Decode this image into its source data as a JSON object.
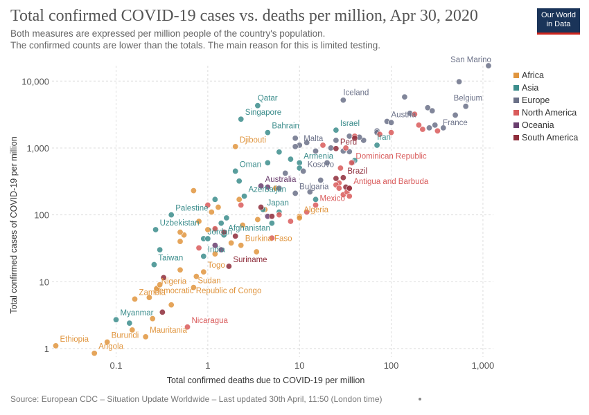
{
  "title": "Total confirmed COVID-19 cases vs. deaths per million, Apr 30, 2020",
  "subtitle_lines": [
    "Both measures are expressed per million people of the country's population.",
    "The confirmed counts are lower than the totals. The main reason for this is limited testing."
  ],
  "logo": {
    "line1": "Our World",
    "line2": "in Data",
    "bg": "#1a3459",
    "accent": "#ce261e"
  },
  "source": "Source: European CDC – Situation Update Worldwide – Last updated 30th April, 11:50 (London time)",
  "chart_data": {
    "type": "scatter",
    "x_scale": "log",
    "y_scale": "log",
    "xlim": [
      0.02,
      1300
    ],
    "ylim": [
      0.75,
      17000
    ],
    "xlabel": "Total confirmed deaths due to COVID-19 per million",
    "ylabel": "Total confirmed cases of COVID-19 per million",
    "x_ticks": [
      {
        "v": 0.1,
        "label": "0.1"
      },
      {
        "v": 1,
        "label": "1"
      },
      {
        "v": 10,
        "label": "10"
      },
      {
        "v": 100,
        "label": "100"
      },
      {
        "v": 1000,
        "label": "1,000"
      }
    ],
    "y_ticks": [
      {
        "v": 1,
        "label": "1"
      },
      {
        "v": 10,
        "label": "10"
      },
      {
        "v": 100,
        "label": "100"
      },
      {
        "v": 1000,
        "label": "1,000"
      },
      {
        "v": 10000,
        "label": "10,000"
      }
    ],
    "grid": true,
    "legend_position": "right",
    "series": [
      {
        "name": "Africa",
        "color": "#e0953e",
        "points": [
          {
            "x": 0.022,
            "y": 1.1,
            "label": "Ethiopia"
          },
          {
            "x": 0.058,
            "y": 0.85,
            "label": "Angola"
          },
          {
            "x": 0.08,
            "y": 1.25,
            "label": "Burundi"
          },
          {
            "x": 0.21,
            "y": 1.5,
            "label": "Mauritania"
          },
          {
            "x": 0.16,
            "y": 5.5,
            "label": "Zambia"
          },
          {
            "x": 0.28,
            "y": 8,
            "label": "Nigeria"
          },
          {
            "x": 0.7,
            "y": 8.2,
            "label": "Sudan"
          },
          {
            "x": 0.23,
            "y": 5.8,
            "label": "Democratic Republic of Congo"
          },
          {
            "x": 0.9,
            "y": 14,
            "label": "Togo"
          },
          {
            "x": 2.3,
            "y": 35,
            "label": "Burkina Faso"
          },
          {
            "x": 10,
            "y": 95,
            "label": "Algeria"
          },
          {
            "x": 2,
            "y": 1050,
            "label": "Djibouti"
          },
          {
            "x": 0.15,
            "y": 1.9
          },
          {
            "x": 0.25,
            "y": 2.8
          },
          {
            "x": 0.4,
            "y": 4.5
          },
          {
            "x": 0.5,
            "y": 15
          },
          {
            "x": 0.55,
            "y": 50
          },
          {
            "x": 0.5,
            "y": 55
          },
          {
            "x": 0.5,
            "y": 40
          },
          {
            "x": 0.7,
            "y": 230
          },
          {
            "x": 0.8,
            "y": 80
          },
          {
            "x": 1.1,
            "y": 110
          },
          {
            "x": 1.3,
            "y": 130
          },
          {
            "x": 1.8,
            "y": 38
          },
          {
            "x": 2.4,
            "y": 70
          },
          {
            "x": 3.4,
            "y": 28
          },
          {
            "x": 3.5,
            "y": 85
          },
          {
            "x": 4.2,
            "y": 120
          },
          {
            "x": 5.5,
            "y": 250
          },
          {
            "x": 10,
            "y": 90
          },
          {
            "x": 1.2,
            "y": 26
          },
          {
            "x": 0.75,
            "y": 12
          },
          {
            "x": 1.0,
            "y": 60
          },
          {
            "x": 2.2,
            "y": 170
          },
          {
            "x": 0.3,
            "y": 9
          }
        ]
      },
      {
        "name": "Asia",
        "color": "#3c8d8c",
        "points": [
          {
            "x": 3.5,
            "y": 4300,
            "label": "Qatar"
          },
          {
            "x": 2.3,
            "y": 2700,
            "label": "Singapore"
          },
          {
            "x": 4.5,
            "y": 1700,
            "label": "Bahrain"
          },
          {
            "x": 25,
            "y": 1850,
            "label": "Israel"
          },
          {
            "x": 70,
            "y": 1100,
            "label": "Iran"
          },
          {
            "x": 2,
            "y": 450,
            "label": "Oman"
          },
          {
            "x": 10,
            "y": 600,
            "label": "Armenia"
          },
          {
            "x": 2.5,
            "y": 190,
            "label": "Azerbaijan"
          },
          {
            "x": 4,
            "y": 120,
            "label": "Japan"
          },
          {
            "x": 0.4,
            "y": 100,
            "label": "Palestine"
          },
          {
            "x": 0.27,
            "y": 60,
            "label": "Uzbekistan"
          },
          {
            "x": 1.5,
            "y": 50,
            "label": "Afghanistan"
          },
          {
            "x": 0.9,
            "y": 44,
            "label": "Jordan"
          },
          {
            "x": 0.9,
            "y": 24,
            "label": "India"
          },
          {
            "x": 0.26,
            "y": 18,
            "label": "Taiwan"
          },
          {
            "x": 0.1,
            "y": 2.7,
            "label": "Myanmar"
          },
          {
            "x": 0.14,
            "y": 2.4
          },
          {
            "x": 0.3,
            "y": 30
          },
          {
            "x": 1.0,
            "y": 44
          },
          {
            "x": 1.2,
            "y": 170
          },
          {
            "x": 1.4,
            "y": 75
          },
          {
            "x": 1.6,
            "y": 90
          },
          {
            "x": 2.2,
            "y": 320
          },
          {
            "x": 4.5,
            "y": 600
          },
          {
            "x": 5,
            "y": 75
          },
          {
            "x": 6,
            "y": 870
          },
          {
            "x": 8,
            "y": 680
          },
          {
            "x": 10,
            "y": 500
          },
          {
            "x": 40,
            "y": 650
          },
          {
            "x": 15,
            "y": 170
          },
          {
            "x": 6,
            "y": 110
          },
          {
            "x": 1.2,
            "y": 60
          }
        ]
      },
      {
        "name": "Europe",
        "color": "#6b7188",
        "points": [
          {
            "x": 1150,
            "y": 17000,
            "label": "San Marino"
          },
          {
            "x": 30,
            "y": 5200,
            "label": "Iceland"
          },
          {
            "x": 650,
            "y": 4200,
            "label": "Belgium"
          },
          {
            "x": 370,
            "y": 2000,
            "label": "France"
          },
          {
            "x": 90,
            "y": 2500,
            "label": "Austria"
          },
          {
            "x": 10,
            "y": 1100,
            "label": "Malta"
          },
          {
            "x": 11,
            "y": 450,
            "label": "Kosovo"
          },
          {
            "x": 9,
            "y": 210,
            "label": "Bulgaria"
          },
          {
            "x": 550,
            "y": 9800
          },
          {
            "x": 500,
            "y": 3100
          },
          {
            "x": 250,
            "y": 4000
          },
          {
            "x": 280,
            "y": 3600
          },
          {
            "x": 260,
            "y": 2000
          },
          {
            "x": 300,
            "y": 2200
          },
          {
            "x": 140,
            "y": 5800
          },
          {
            "x": 160,
            "y": 3300
          },
          {
            "x": 100,
            "y": 2400
          },
          {
            "x": 70,
            "y": 1800
          },
          {
            "x": 50,
            "y": 1300
          },
          {
            "x": 45,
            "y": 1450
          },
          {
            "x": 35,
            "y": 1500
          },
          {
            "x": 30,
            "y": 900
          },
          {
            "x": 25,
            "y": 1300
          },
          {
            "x": 22,
            "y": 1000
          },
          {
            "x": 20,
            "y": 600
          },
          {
            "x": 15,
            "y": 900
          },
          {
            "x": 12,
            "y": 1200
          },
          {
            "x": 9,
            "y": 1050
          },
          {
            "x": 9,
            "y": 1400
          },
          {
            "x": 7,
            "y": 420
          },
          {
            "x": 17,
            "y": 330
          },
          {
            "x": 38,
            "y": 610
          },
          {
            "x": 35,
            "y": 880
          },
          {
            "x": 70,
            "y": 1700
          },
          {
            "x": 6,
            "y": 250
          },
          {
            "x": 13,
            "y": 220
          }
        ]
      },
      {
        "name": "North America",
        "color": "#d95b5b",
        "points": [
          {
            "x": 37,
            "y": 600,
            "label": "Dominican Republic"
          },
          {
            "x": 35,
            "y": 250,
            "label": "Antigua and Barbuda"
          },
          {
            "x": 15,
            "y": 140,
            "label": "Mexico"
          },
          {
            "x": 0.6,
            "y": 2.1,
            "label": "Nicaragua"
          },
          {
            "x": 180,
            "y": 3200
          },
          {
            "x": 200,
            "y": 2200
          },
          {
            "x": 220,
            "y": 1900
          },
          {
            "x": 320,
            "y": 1800
          },
          {
            "x": 100,
            "y": 1700
          },
          {
            "x": 75,
            "y": 1600
          },
          {
            "x": 40,
            "y": 1500
          },
          {
            "x": 18,
            "y": 1100
          },
          {
            "x": 32,
            "y": 1000
          },
          {
            "x": 28,
            "y": 500
          },
          {
            "x": 27,
            "y": 300
          },
          {
            "x": 25,
            "y": 280
          },
          {
            "x": 30,
            "y": 200
          },
          {
            "x": 33,
            "y": 220
          },
          {
            "x": 12,
            "y": 110
          },
          {
            "x": 8,
            "y": 80
          },
          {
            "x": 6,
            "y": 100
          },
          {
            "x": 5,
            "y": 45
          },
          {
            "x": 2.3,
            "y": 140
          },
          {
            "x": 1.0,
            "y": 140
          },
          {
            "x": 0.8,
            "y": 32
          },
          {
            "x": 1.2,
            "y": 62
          },
          {
            "x": 27,
            "y": 250
          },
          {
            "x": 35,
            "y": 190
          }
        ]
      },
      {
        "name": "Oceania",
        "color": "#6a3e6e",
        "points": [
          {
            "x": 3.8,
            "y": 270,
            "label": "Australia"
          },
          {
            "x": 4.5,
            "y": 260
          },
          {
            "x": 1.2,
            "y": 35
          },
          {
            "x": 4.5,
            "y": 95
          },
          {
            "x": 1.4,
            "y": 30
          }
        ]
      },
      {
        "name": "South America",
        "color": "#8e2c3a",
        "points": [
          {
            "x": 25,
            "y": 980,
            "label": "Peru"
          },
          {
            "x": 30,
            "y": 360,
            "label": "Brazil"
          },
          {
            "x": 1.7,
            "y": 17,
            "label": "Suriname"
          },
          {
            "x": 32,
            "y": 260
          },
          {
            "x": 25,
            "y": 350
          },
          {
            "x": 5,
            "y": 95
          },
          {
            "x": 3.8,
            "y": 130
          },
          {
            "x": 1.5,
            "y": 55
          },
          {
            "x": 2,
            "y": 48
          },
          {
            "x": 0.33,
            "y": 11.5
          },
          {
            "x": 0.32,
            "y": 3.5
          },
          {
            "x": 35,
            "y": 250
          },
          {
            "x": 40,
            "y": 1400
          }
        ]
      }
    ]
  }
}
